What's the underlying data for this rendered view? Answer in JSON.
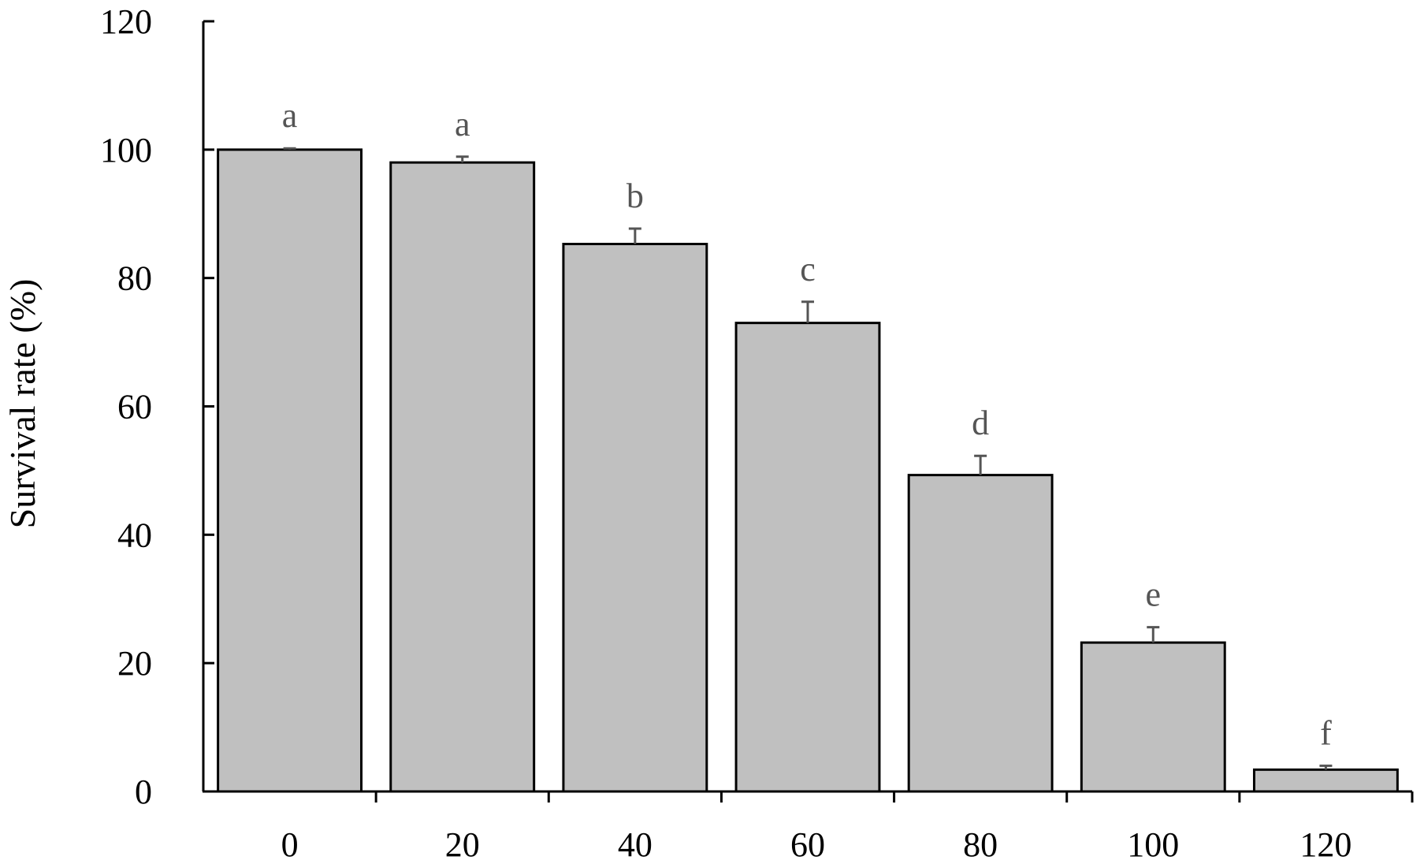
{
  "chart_data": {
    "type": "bar",
    "title": "",
    "xlabel": "",
    "ylabel": "Survival rate (%)",
    "categories": [
      "0",
      "20",
      "40",
      "60",
      "80",
      "100",
      "120"
    ],
    "values": [
      100,
      98,
      85.3,
      73,
      49.3,
      23.2,
      3.4
    ],
    "errors": [
      0.2,
      0.9,
      2.4,
      3.3,
      3.0,
      2.4,
      0.6
    ],
    "significance": [
      "a",
      "a",
      "b",
      "c",
      "d",
      "e",
      "f"
    ],
    "ylim": [
      0,
      120
    ],
    "yticks": [
      "0",
      "20",
      "40",
      "60",
      "80",
      "100",
      "120"
    ],
    "grid": false,
    "bar_color": "#c0c0c0",
    "edge_color": "#000000",
    "error_color": "#555555"
  }
}
